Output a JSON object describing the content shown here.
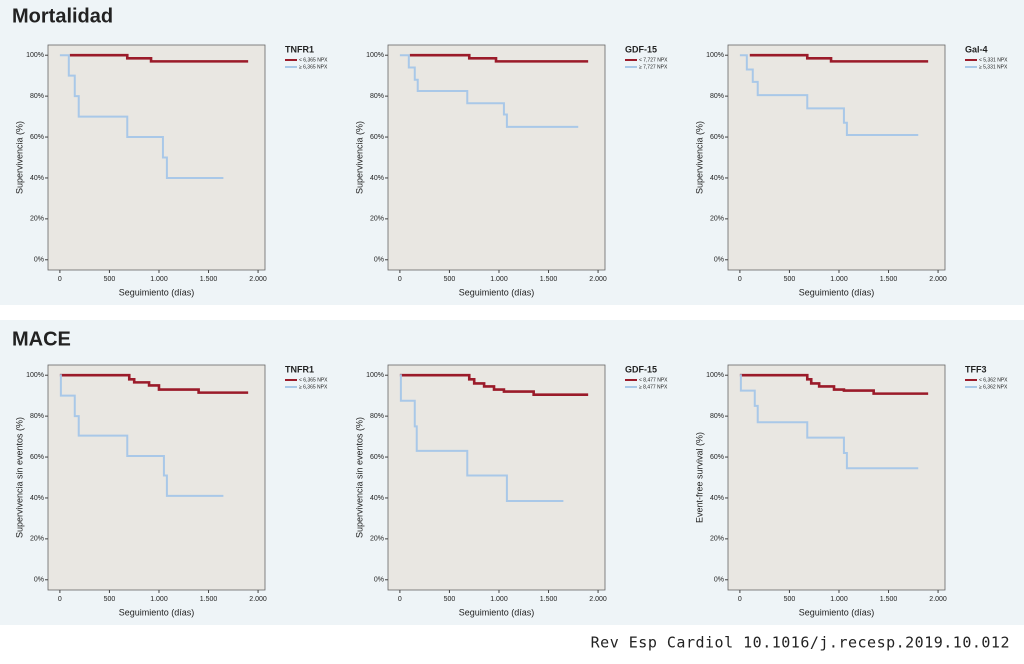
{
  "sections": [
    "Mortalidad",
    "MACE"
  ],
  "citation": "Rev Esp Cardiol 10.1016/j.recesp.2019.10.012",
  "chart_data": [
    {
      "type": "step",
      "legend_title": "TNFR1",
      "xlabel": "Seguimiento (días)",
      "ylabel": "Supervivencia (%)",
      "xlim": [
        -120,
        2070
      ],
      "ylim": [
        -5,
        105
      ],
      "xticks": [
        0,
        500,
        {
          "value": 1000,
          "label": "1.000"
        },
        {
          "value": 1500,
          "label": "1.500"
        },
        {
          "value": 2000,
          "label": "2.000"
        }
      ],
      "yticks": [
        {
          "value": 0,
          "label": "0%"
        },
        {
          "value": 20,
          "label": "20%"
        },
        {
          "value": 40,
          "label": "40%"
        },
        {
          "value": 60,
          "label": "60%"
        },
        {
          "value": 80,
          "label": "80%"
        },
        {
          "value": 100,
          "label": "100%"
        }
      ],
      "series": [
        {
          "name": "< 6,365 NPX",
          "color": "#9b1b2a",
          "x": [
            100,
            680,
            920,
            1900
          ],
          "values": [
            100,
            98.5,
            97,
            97
          ]
        },
        {
          "name": "≥ 6,365 NPX",
          "color": "#a9c8e8",
          "x": [
            0,
            90,
            150,
            190,
            680,
            1040,
            1080,
            1650
          ],
          "values": [
            100,
            90,
            80,
            70,
            60,
            50,
            40,
            40
          ]
        }
      ]
    },
    {
      "type": "step",
      "legend_title": "GDF-15",
      "xlabel": "Seguimiento (días)",
      "ylabel": "Supervivencia (%)",
      "xlim": [
        -120,
        2070
      ],
      "ylim": [
        -5,
        105
      ],
      "xticks": [
        0,
        500,
        {
          "value": 1000,
          "label": "1.000"
        },
        {
          "value": 1500,
          "label": "1.500"
        },
        {
          "value": 2000,
          "label": "2.000"
        }
      ],
      "yticks": [
        {
          "value": 0,
          "label": "0%"
        },
        {
          "value": 20,
          "label": "20%"
        },
        {
          "value": 40,
          "label": "40%"
        },
        {
          "value": 60,
          "label": "60%"
        },
        {
          "value": 80,
          "label": "80%"
        },
        {
          "value": 100,
          "label": "100%"
        }
      ],
      "series": [
        {
          "name": "< 7,727 NPX",
          "color": "#9b1b2a",
          "x": [
            100,
            700,
            970,
            1900
          ],
          "values": [
            100,
            98.5,
            97,
            97
          ]
        },
        {
          "name": "≥ 7,727 NPX",
          "color": "#a9c8e8",
          "x": [
            0,
            90,
            150,
            180,
            680,
            1050,
            1080,
            1800
          ],
          "values": [
            100,
            94,
            88,
            82.5,
            76.5,
            71,
            65,
            65
          ]
        }
      ]
    },
    {
      "type": "step",
      "legend_title": "Gal-4",
      "xlabel": "Seguimiento (días)",
      "ylabel": "Supervivencia (%)",
      "xlim": [
        -120,
        2070
      ],
      "ylim": [
        -5,
        105
      ],
      "xticks": [
        0,
        500,
        {
          "value": 1000,
          "label": "1.000"
        },
        {
          "value": 1500,
          "label": "1.500"
        },
        {
          "value": 2000,
          "label": "2.000"
        }
      ],
      "yticks": [
        {
          "value": 0,
          "label": "0%"
        },
        {
          "value": 20,
          "label": "20%"
        },
        {
          "value": 40,
          "label": "40%"
        },
        {
          "value": 60,
          "label": "60%"
        },
        {
          "value": 80,
          "label": "80%"
        },
        {
          "value": 100,
          "label": "100%"
        }
      ],
      "series": [
        {
          "name": "< 5,331 NPX",
          "color": "#9b1b2a",
          "x": [
            100,
            680,
            920,
            1900
          ],
          "values": [
            100,
            98.5,
            97,
            97
          ]
        },
        {
          "name": "≥ 5,331 NPX",
          "color": "#a9c8e8",
          "x": [
            0,
            70,
            130,
            180,
            680,
            1050,
            1080,
            1800
          ],
          "values": [
            100,
            93,
            87,
            80.5,
            74,
            67,
            61,
            61
          ]
        }
      ]
    },
    {
      "type": "step",
      "legend_title": "TNFR1",
      "xlabel": "Seguimiento (días)",
      "ylabel": "Supervivencia sin eventos (%)",
      "xlim": [
        -120,
        2070
      ],
      "ylim": [
        -5,
        105
      ],
      "xticks": [
        0,
        500,
        {
          "value": 1000,
          "label": "1.000"
        },
        {
          "value": 1500,
          "label": "1.500"
        },
        {
          "value": 2000,
          "label": "2.000"
        }
      ],
      "yticks": [
        {
          "value": 0,
          "label": "0%"
        },
        {
          "value": 20,
          "label": "20%"
        },
        {
          "value": 40,
          "label": "40%"
        },
        {
          "value": 60,
          "label": "60%"
        },
        {
          "value": 80,
          "label": "80%"
        },
        {
          "value": 100,
          "label": "100%"
        }
      ],
      "series": [
        {
          "name": "< 6,365 NPX",
          "color": "#9b1b2a",
          "x": [
            0,
            700,
            750,
            900,
            1000,
            1400,
            1900
          ],
          "values": [
            100,
            98,
            96.5,
            95,
            93,
            91.5,
            91.5
          ]
        },
        {
          "name": "≥ 6,365 NPX",
          "color": "#a9c8e8",
          "x": [
            0,
            10,
            150,
            190,
            680,
            1050,
            1080,
            1650
          ],
          "values": [
            100,
            90,
            80,
            70.5,
            60.5,
            51,
            41,
            41
          ]
        }
      ]
    },
    {
      "type": "step",
      "legend_title": "GDF-15",
      "xlabel": "Seguimiento (días)",
      "ylabel": "Supervivencia sin eventos (%)",
      "xlim": [
        -120,
        2070
      ],
      "ylim": [
        -5,
        105
      ],
      "xticks": [
        0,
        500,
        {
          "value": 1000,
          "label": "1.000"
        },
        {
          "value": 1500,
          "label": "1.500"
        },
        {
          "value": 2000,
          "label": "2.000"
        }
      ],
      "yticks": [
        {
          "value": 0,
          "label": "0%"
        },
        {
          "value": 20,
          "label": "20%"
        },
        {
          "value": 40,
          "label": "40%"
        },
        {
          "value": 60,
          "label": "60%"
        },
        {
          "value": 80,
          "label": "80%"
        },
        {
          "value": 100,
          "label": "100%"
        }
      ],
      "series": [
        {
          "name": "< 8,477 NPX",
          "color": "#9b1b2a",
          "x": [
            0,
            700,
            750,
            850,
            950,
            1050,
            1350,
            1900
          ],
          "values": [
            100,
            98,
            96,
            94.5,
            93,
            92,
            90.5,
            90.5
          ]
        },
        {
          "name": "≥ 8,477 NPX",
          "color": "#a9c8e8",
          "x": [
            0,
            10,
            150,
            170,
            680,
            1080,
            1650
          ],
          "values": [
            100,
            87.5,
            75,
            63,
            51,
            38.5,
            38.5
          ]
        }
      ]
    },
    {
      "type": "step",
      "legend_title": "TFF3",
      "xlabel": "Seguimiento (días)",
      "ylabel": "Event-free survival (%)",
      "xlim": [
        -120,
        2070
      ],
      "ylim": [
        -5,
        105
      ],
      "xticks": [
        0,
        500,
        {
          "value": 1000,
          "label": "1.000"
        },
        {
          "value": 1500,
          "label": "1.500"
        },
        {
          "value": 2000,
          "label": "2.000"
        }
      ],
      "yticks": [
        {
          "value": 0,
          "label": "0%"
        },
        {
          "value": 20,
          "label": "20%"
        },
        {
          "value": 40,
          "label": "40%"
        },
        {
          "value": 60,
          "label": "60%"
        },
        {
          "value": 80,
          "label": "80%"
        },
        {
          "value": 100,
          "label": "100%"
        }
      ],
      "series": [
        {
          "name": "< 6,362 NPX",
          "color": "#9b1b2a",
          "x": [
            0,
            680,
            720,
            800,
            950,
            1050,
            1350,
            1900
          ],
          "values": [
            100,
            98,
            96,
            94.5,
            93,
            92.5,
            91,
            91
          ]
        },
        {
          "name": "≥ 6,362 NPX",
          "color": "#a9c8e8",
          "x": [
            0,
            10,
            150,
            180,
            680,
            1050,
            1080,
            1800
          ],
          "values": [
            100,
            92.5,
            85,
            77,
            69.5,
            62,
            54.5,
            54.5
          ]
        }
      ]
    }
  ]
}
